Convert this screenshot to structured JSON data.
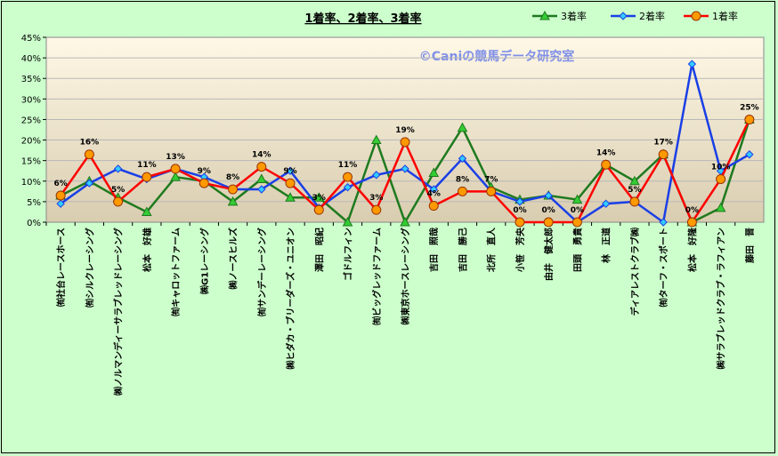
{
  "chart_data": {
    "type": "line",
    "title": "1着率、2着率、3着率",
    "watermark": "©Caniの競馬データ研究室",
    "ylim": [
      0,
      45
    ],
    "ytick_labels": [
      "0%",
      "5%",
      "10%",
      "15%",
      "20%",
      "25%",
      "30%",
      "35%",
      "40%",
      "45%"
    ],
    "legend_position": "top-right",
    "colors": {
      "third": "#1f7a1f",
      "third_marker": "#33cc33",
      "second": "#1a3fe6",
      "second_marker": "#33ccff",
      "first": "#ff0000",
      "first_marker": "#ff9900",
      "plot_top": "#fff8e6",
      "plot_bottom": "#d9cdb0"
    },
    "categories": [
      "㈲社台レースホース",
      "㈲シルクレーシング",
      "㈱ノルマンディーサラブレッドレーシング",
      "松本　好雄",
      "㈲キャロットファーム",
      "㈱G1レーシング",
      "㈱ノースヒルズ",
      "㈲サンデーレーシング",
      "㈱ヒダカ・ブリーダーズ・ユニオン",
      "澤田　昭紀",
      "ゴドルフィン",
      "㈲ビッグレッドファーム",
      "㈱東京ホースレーシング",
      "吉田　照哉",
      "吉田　勝己",
      "北所　直人",
      "小笹　芳央",
      "由井　健太郎",
      "田頭　勇貴",
      "林　正道",
      "ディアレストクラブ㈱",
      "㈲ターフ・スポート",
      "松本　好隆",
      "㈱サラブレッドクラブ・ラフィアン",
      "藤田　晋"
    ],
    "series": [
      {
        "name": "3着率",
        "key": "third",
        "values": [
          6.5,
          10,
          6,
          2.5,
          11,
          10,
          5,
          10.5,
          6,
          6,
          0,
          20,
          0,
          12,
          23,
          8.5,
          5.5,
          6.5,
          5.5,
          14,
          10,
          16.5,
          0,
          3.5,
          25
        ]
      },
      {
        "name": "2着率",
        "key": "second",
        "values": [
          4.5,
          9.5,
          13,
          10.5,
          13,
          11,
          8,
          8,
          12.5,
          3.5,
          8.5,
          11.5,
          13,
          8,
          15.5,
          7.5,
          5,
          6.5,
          0,
          4.5,
          5,
          0,
          38.5,
          12.5,
          16.5
        ]
      },
      {
        "name": "1着率",
        "key": "first",
        "values": [
          6.5,
          16.5,
          5,
          11,
          13,
          9.5,
          8,
          13.5,
          9.5,
          3,
          11,
          3,
          19.5,
          4,
          7.5,
          7.5,
          0,
          0,
          0,
          14,
          5,
          16.5,
          0,
          10.5,
          25
        ]
      }
    ],
    "data_labels": [
      "6%",
      "16%",
      "5%",
      "11%",
      "13%",
      "9%",
      "8%",
      "14%",
      "9%",
      "3%",
      "11%",
      "3%",
      "19%",
      "4%",
      "8%",
      "7%",
      "0%",
      "0%",
      "0%",
      "14%",
      "5%",
      "17%",
      "0%",
      "10%",
      "25%"
    ]
  }
}
